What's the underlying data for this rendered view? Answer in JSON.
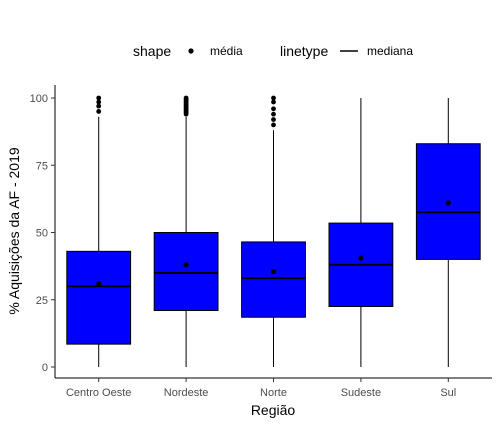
{
  "chart_data": {
    "type": "boxplot",
    "xlabel": "Região",
    "ylabel": "% Aquisições da AF - 2019",
    "ylim": [
      0,
      100
    ],
    "yticks": [
      0,
      25,
      50,
      75,
      100
    ],
    "grid": false,
    "legend_position": "top",
    "fill_color": "#0000ff",
    "legend": {
      "shape_title": "shape",
      "shape_label": "média",
      "linetype_title": "linetype",
      "linetype_label": "mediana"
    },
    "categories": [
      "Centro Oeste",
      "Nordeste",
      "Norte",
      "Sudeste",
      "Sul"
    ],
    "boxes": [
      {
        "category": "Centro Oeste",
        "whisker_low": 0,
        "q1": 8.5,
        "median": 30,
        "q3": 43,
        "whisker_high": 93,
        "mean": 31,
        "outliers": [
          95,
          97,
          98.5,
          100
        ]
      },
      {
        "category": "Nordeste",
        "whisker_low": 0,
        "q1": 21,
        "median": 35,
        "q3": 50,
        "whisker_high": 93,
        "mean": 38,
        "outliers": [
          94,
          94.5,
          95,
          95.5,
          96,
          96.5,
          97,
          97.5,
          98,
          98.5,
          99,
          99.5,
          100
        ]
      },
      {
        "category": "Norte",
        "whisker_low": 0,
        "q1": 18.5,
        "median": 33,
        "q3": 46.5,
        "whisker_high": 88,
        "mean": 35.5,
        "outliers": [
          90,
          92,
          94,
          96,
          98.5,
          100
        ]
      },
      {
        "category": "Sudeste",
        "whisker_low": 0,
        "q1": 22.5,
        "median": 38,
        "q3": 53.5,
        "whisker_high": 100,
        "mean": 40.5,
        "outliers": []
      },
      {
        "category": "Sul",
        "whisker_low": 0,
        "q1": 40,
        "median": 57.5,
        "q3": 83,
        "whisker_high": 100,
        "mean": 61,
        "outliers": []
      }
    ]
  }
}
